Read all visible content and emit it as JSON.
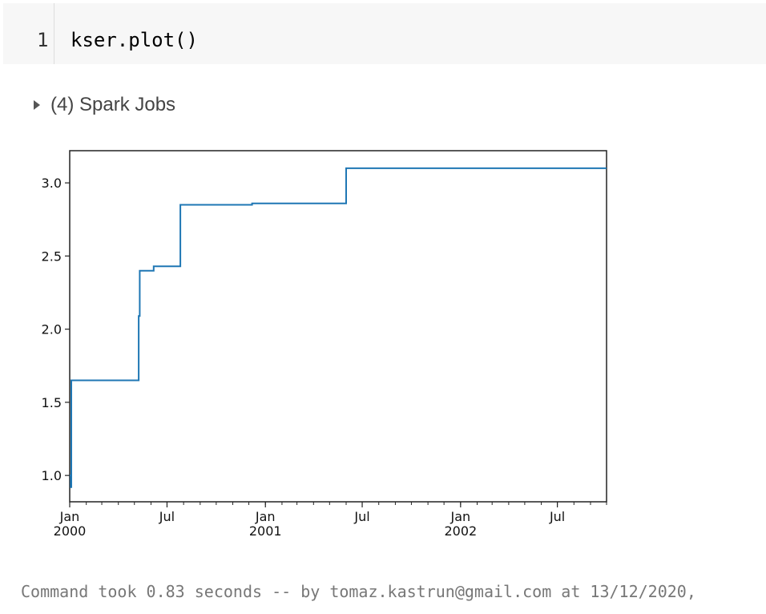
{
  "cell": {
    "line_number": "1",
    "code": "kser.plot()"
  },
  "spark_jobs": {
    "label": "(4) Spark Jobs"
  },
  "chart_data": {
    "type": "line",
    "title": "",
    "xlabel": "",
    "ylabel": "",
    "xlim": [
      "2000-01-01",
      "2002-10-01"
    ],
    "ylim": [
      0.82,
      3.22
    ],
    "yticks": [
      1.0,
      1.5,
      2.0,
      2.5,
      3.0
    ],
    "ytick_labels": [
      "1.0",
      "1.5",
      "2.0",
      "2.5",
      "3.0"
    ],
    "xticks": [
      {
        "date": "2000-01-01",
        "label": "Jan",
        "sublabel": "2000"
      },
      {
        "date": "2000-07-01",
        "label": "Jul",
        "sublabel": ""
      },
      {
        "date": "2001-01-01",
        "label": "Jan",
        "sublabel": "2001"
      },
      {
        "date": "2001-07-01",
        "label": "Jul",
        "sublabel": ""
      },
      {
        "date": "2002-01-01",
        "label": "Jan",
        "sublabel": "2002"
      },
      {
        "date": "2002-07-01",
        "label": "Jul",
        "sublabel": ""
      }
    ],
    "grid": false,
    "step": true,
    "line_color": "#1f77b4",
    "series": [
      {
        "x": [
          "2000-01-01",
          "2000-01-03",
          "2000-01-04",
          "2000-05-08",
          "2000-05-09",
          "2000-05-11",
          "2000-06-01",
          "2000-06-06",
          "2000-07-24",
          "2000-07-26",
          "2000-12-07",
          "2001-05-30",
          "2001-06-01",
          "2002-10-01"
        ],
        "y": [
          1.0,
          0.92,
          1.65,
          1.65,
          2.09,
          2.4,
          2.4,
          2.43,
          2.43,
          2.85,
          2.86,
          2.86,
          3.1,
          3.1
        ]
      }
    ]
  },
  "footer": {
    "text": "Command took 0.83 seconds -- by tomaz.kastrun@gmail.com at 13/12/2020,"
  }
}
